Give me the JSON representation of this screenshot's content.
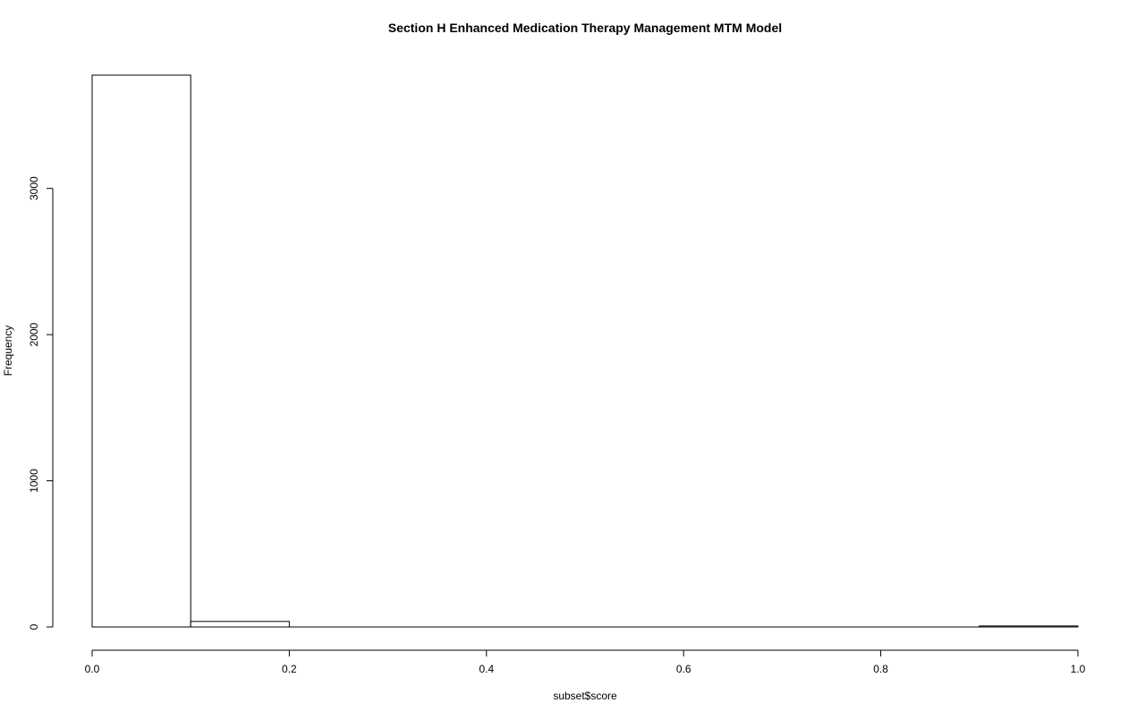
{
  "chart_data": {
    "type": "bar",
    "title": "Section H  Enhanced Medication Therapy Management MTM Model",
    "xlabel": "subset$score",
    "ylabel": "Frequency",
    "bins": [
      {
        "start": 0.0,
        "end": 0.1,
        "count": 3775
      },
      {
        "start": 0.1,
        "end": 0.2,
        "count": 38
      },
      {
        "start": 0.2,
        "end": 0.3,
        "count": 0
      },
      {
        "start": 0.3,
        "end": 0.4,
        "count": 0
      },
      {
        "start": 0.4,
        "end": 0.5,
        "count": 0
      },
      {
        "start": 0.5,
        "end": 0.6,
        "count": 0
      },
      {
        "start": 0.6,
        "end": 0.7,
        "count": 0
      },
      {
        "start": 0.7,
        "end": 0.8,
        "count": 0
      },
      {
        "start": 0.8,
        "end": 0.9,
        "count": 0
      },
      {
        "start": 0.9,
        "end": 1.0,
        "count": 7
      }
    ],
    "xlim": [
      0.0,
      1.0
    ],
    "ylim": [
      0,
      3775
    ],
    "x_ticks": [
      {
        "value": 0.0,
        "label": "0.0"
      },
      {
        "value": 0.2,
        "label": "0.2"
      },
      {
        "value": 0.4,
        "label": "0.4"
      },
      {
        "value": 0.6,
        "label": "0.6"
      },
      {
        "value": 0.8,
        "label": "0.8"
      },
      {
        "value": 1.0,
        "label": "1.0"
      }
    ],
    "y_ticks": [
      {
        "value": 0,
        "label": "0"
      },
      {
        "value": 1000,
        "label": "1000"
      },
      {
        "value": 2000,
        "label": "2000"
      },
      {
        "value": 3000,
        "label": "3000"
      }
    ],
    "grid": false,
    "legend": "none",
    "colors": {
      "bar_fill": "#ffffff",
      "bar_stroke": "#000000",
      "background": "#ffffff"
    }
  }
}
